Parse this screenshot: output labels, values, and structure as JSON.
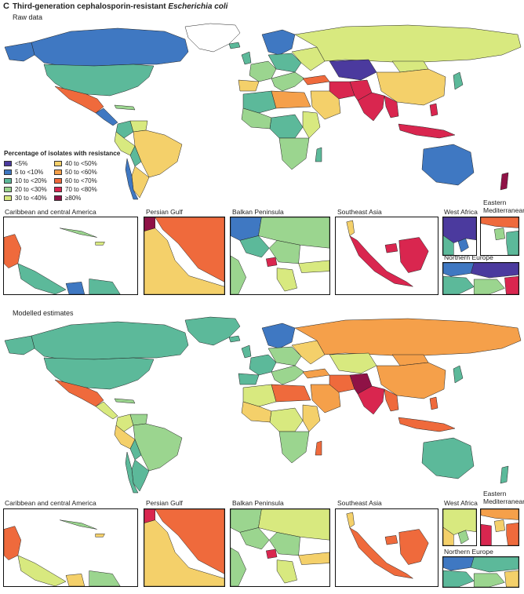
{
  "panel": {
    "letter": "C",
    "title_prefix": "Third-generation cephalosporin-resistant ",
    "title_italic": "Escherichia coli"
  },
  "sections": {
    "raw": "Raw data",
    "modelled": "Modelled estimates"
  },
  "legend": {
    "title": "Percentage of isolates with resistance",
    "items": [
      {
        "label": "<5%",
        "color": "#4b3a9e"
      },
      {
        "label": "40 to <50%",
        "color": "#f4d06a"
      },
      {
        "label": "5 to <10%",
        "color": "#3f78c2"
      },
      {
        "label": "50 to <60%",
        "color": "#f5a04a"
      },
      {
        "label": "10 to <20%",
        "color": "#5cb99a"
      },
      {
        "label": "60 to <70%",
        "color": "#ef6a3c"
      },
      {
        "label": "20 to <30%",
        "color": "#9bd58f"
      },
      {
        "label": "70 to <80%",
        "color": "#d9264f"
      },
      {
        "label": "30 to <40%",
        "color": "#d8e97f"
      },
      {
        "label": "≥80%",
        "color": "#8f1246"
      }
    ]
  },
  "insets": {
    "caribbean": "Caribbean and central America",
    "persian": "Persian Gulf",
    "balkan": "Balkan Peninsula",
    "seasia": "Southeast Asia",
    "westafrica": "West Africa",
    "eastmed": "Eastern Mediterranean",
    "northeu": "Northern Europe"
  }
}
